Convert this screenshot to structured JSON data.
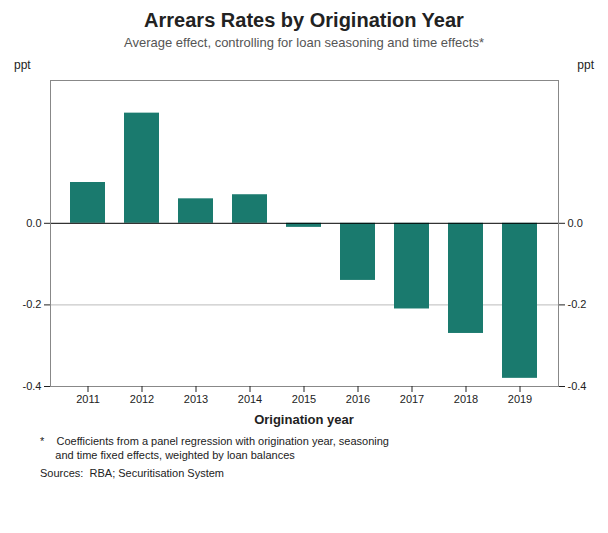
{
  "chart_data": {
    "type": "bar",
    "title": "Arrears Rates by Origination Year",
    "subtitle": "Average effect, controlling for loan seasoning and time effects*",
    "xlabel": "Origination year",
    "ylabel": "ppt",
    "y2label": "ppt",
    "categories": [
      2011,
      2012,
      2013,
      2014,
      2015,
      2016,
      2017,
      2018,
      2019
    ],
    "values": [
      0.1,
      0.27,
      0.06,
      0.07,
      -0.01,
      -0.14,
      -0.21,
      -0.27,
      -0.38
    ],
    "color": "#1a7a6e",
    "ylim": [
      -0.4,
      0.35
    ],
    "yticks": [
      -0.4,
      -0.2,
      {
        "value": 0,
        "label": "0.0"
      }
    ],
    "y2lim": [
      -0.4,
      0.35
    ],
    "y2ticks": [
      -0.4,
      -0.2,
      {
        "value": 0,
        "label": "0.0"
      }
    ],
    "grid": true,
    "footnotes": [
      "*    Coefficients from a panel regression with origination year, seasoning\n     and time fixed effects, weighted by loan balances",
      "Sources:  RBA; Securitisation System"
    ]
  }
}
